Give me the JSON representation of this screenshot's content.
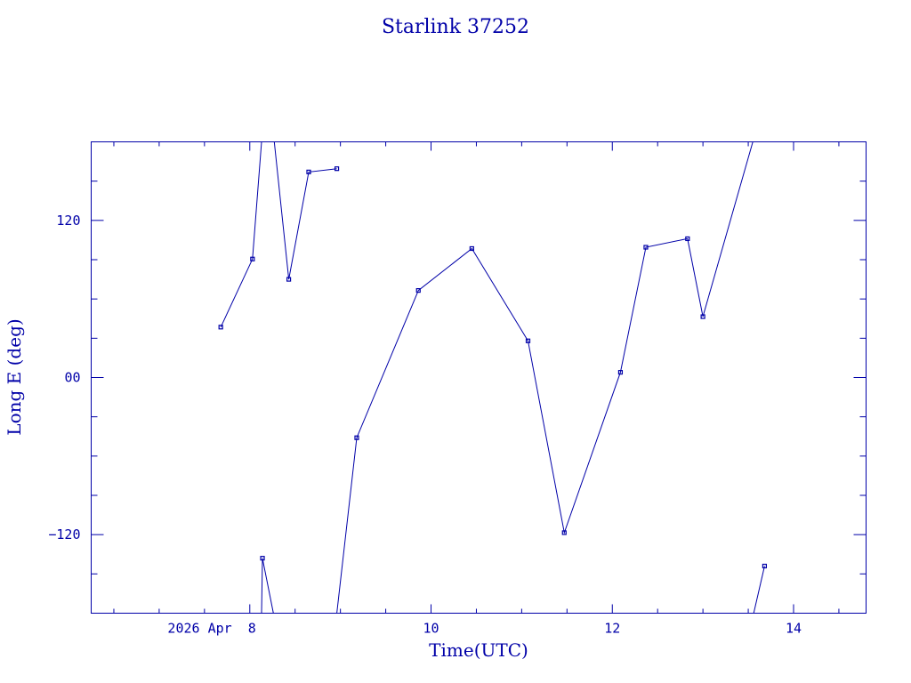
{
  "chart_data": {
    "type": "line",
    "title": "Starlink 37252",
    "xlabel": "Time(UTC)",
    "ylabel": "Long E (deg)",
    "x_unit": "hours UTC, 2026 Apr 8",
    "xlim": [
      6.25,
      14.8
    ],
    "ylim": [
      -180,
      180
    ],
    "x_ticks": [
      {
        "value": 8,
        "label": "2026 Apr  8"
      },
      {
        "value": 10,
        "label": "10"
      },
      {
        "value": 12,
        "label": "12"
      },
      {
        "value": 14,
        "label": "14"
      }
    ],
    "y_ticks": [
      {
        "value": 120,
        "label": "120"
      },
      {
        "value": 0,
        "label": "00"
      },
      {
        "value": -120,
        "label": "−120"
      }
    ],
    "grid": false,
    "color": "#0000a8",
    "series": [
      {
        "points": [
          {
            "x": 7.68,
            "y": 38.5
          },
          {
            "x": 8.03,
            "y": 90.5
          },
          {
            "x": 8.43,
            "y": 75
          },
          {
            "x": 8.65,
            "y": 157
          },
          {
            "x": 8.96,
            "y": 159.5
          },
          {
            "x": 9.18,
            "y": -46
          },
          {
            "x": 9.86,
            "y": 66.5
          },
          {
            "x": 10.45,
            "y": 98.5
          },
          {
            "x": 11.07,
            "y": 28
          },
          {
            "x": 11.47,
            "y": -118.5
          },
          {
            "x": 12.09,
            "y": 4
          },
          {
            "x": 12.37,
            "y": 99.5
          },
          {
            "x": 12.83,
            "y": 106
          },
          {
            "x": 13.0,
            "y": 46.5
          },
          {
            "x": 13.68,
            "y": -144
          }
        ],
        "wrap_points": [
          {
            "x": 8.14,
            "y": -138
          }
        ],
        "path": [
          [
            7.68,
            38.5
          ],
          [
            8.03,
            90.5
          ],
          [
            8.13,
            181
          ],
          [
            8.14,
            181
          ],
          [
            8.27,
            181
          ],
          [
            8.43,
            75
          ],
          [
            8.65,
            157
          ],
          [
            8.96,
            159.5
          ],
          [
            "break"
          ],
          [
            8.13,
            -181
          ],
          [
            8.14,
            -138
          ],
          [
            8.26,
            -181
          ],
          [
            "break"
          ],
          [
            8.96,
            -181
          ],
          [
            9.18,
            -46
          ],
          [
            9.86,
            66.5
          ],
          [
            10.45,
            98.5
          ],
          [
            11.07,
            28
          ],
          [
            11.47,
            -118.5
          ],
          [
            12.09,
            4
          ],
          [
            12.37,
            99.5
          ],
          [
            12.83,
            106
          ],
          [
            13.0,
            46.5
          ],
          [
            13.55,
            181
          ],
          [
            "break"
          ],
          [
            13.56,
            -181
          ],
          [
            13.68,
            -144
          ]
        ]
      }
    ]
  }
}
